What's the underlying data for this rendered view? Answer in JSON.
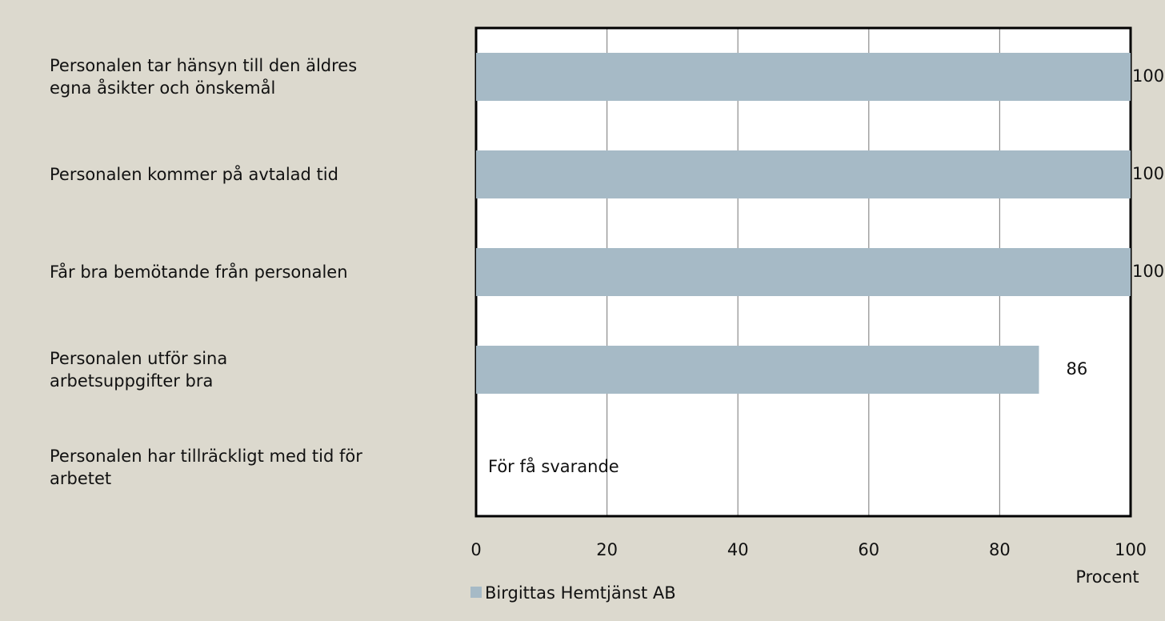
{
  "chart_data": {
    "type": "barh",
    "categories": [
      "Personalen tar hänsyn till den äldres\negna åsikter och önskemål",
      "Personalen kommer på avtalad tid",
      "Får bra bemötande från personalen",
      "Personalen utför sina\narbetsuppgifter bra",
      "Personalen har tillräckligt med tid för\narbetet"
    ],
    "series": [
      {
        "name": "Birgittas Hemtjänst AB",
        "color": "#a6bac6",
        "values": [
          100,
          100,
          100,
          86,
          null
        ]
      }
    ],
    "xlim": [
      0,
      100
    ],
    "xticks": [
      0,
      20,
      40,
      60,
      80,
      100
    ],
    "xlabel": "Procent",
    "grid": true,
    "annotations": [
      "För få svarande"
    ]
  }
}
